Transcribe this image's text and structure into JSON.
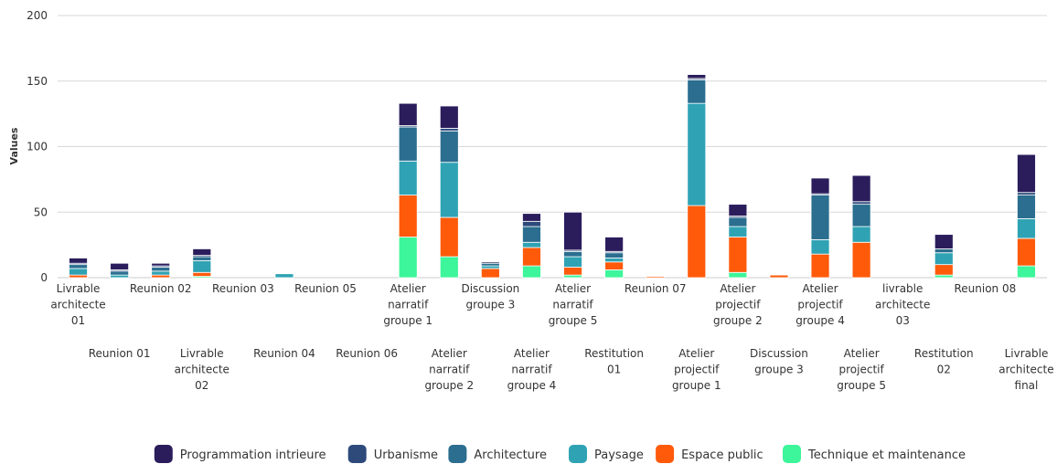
{
  "chart_data": {
    "type": "bar",
    "stacked": true,
    "ylabel": "Values",
    "ylim": [
      0,
      200
    ],
    "yticks": [
      0,
      50,
      100,
      150,
      200
    ],
    "legend_position": "bottom-center",
    "grid": true,
    "categories": [
      "Livrable architecte 01",
      "Reunion 01",
      "Reunion 02",
      "Livrable architecte 02",
      "Reunion 03",
      "Reunion 04",
      "Reunion 05",
      "Reunion 06",
      "Atelier narratif groupe 1",
      "Atelier narratif groupe 2",
      "Discussion groupe 3",
      "Atelier narratif groupe 4",
      "Atelier narratif groupe 5",
      "Restitution 01",
      "Reunion 07",
      "Atelier projectif groupe 1",
      "Atelier projectif groupe 2",
      "Discussion groupe 3",
      "Atelier projectif groupe 4",
      "Atelier projectif groupe 5",
      "livrable architecte 03",
      "Restitution 02",
      "Reunion 08",
      "Livrable architecte final"
    ],
    "series": [
      {
        "name": "Technique et maintenance",
        "color": "#3df59a",
        "values": [
          0,
          0,
          0,
          1,
          0,
          0,
          0,
          0,
          31,
          16,
          0,
          9,
          2,
          6,
          0,
          0,
          4,
          0,
          0,
          0,
          0,
          2,
          0,
          9
        ]
      },
      {
        "name": "Espace public",
        "color": "#ff5a0a",
        "values": [
          2,
          0,
          2,
          3,
          0,
          0,
          0,
          0,
          32,
          30,
          7,
          14,
          6,
          6,
          1,
          55,
          27,
          2,
          18,
          27,
          0,
          8,
          0,
          21
        ]
      },
      {
        "name": "Paysage",
        "color": "#2fa3b4",
        "values": [
          5,
          2,
          3,
          9,
          0,
          3,
          0,
          0,
          26,
          42,
          2,
          4,
          8,
          3,
          0,
          78,
          8,
          0,
          11,
          12,
          0,
          9,
          0,
          15
        ]
      },
      {
        "name": "Architecture",
        "color": "#2b6e8f",
        "values": [
          3,
          3,
          3,
          3,
          0,
          0,
          0,
          0,
          26,
          24,
          2,
          12,
          4,
          4,
          0,
          18,
          7,
          0,
          34,
          17,
          0,
          3,
          0,
          18
        ]
      },
      {
        "name": "Urbanisme",
        "color": "#2d4a7b",
        "values": [
          1,
          1,
          1,
          1,
          0,
          0,
          0,
          0,
          1,
          2,
          0,
          4,
          1,
          1,
          0,
          1,
          1,
          0,
          1,
          2,
          0,
          0,
          0,
          2
        ]
      },
      {
        "name": "Programmation intrieure",
        "color": "#2b1d5c",
        "values": [
          4,
          5,
          2,
          5,
          0,
          0,
          0,
          0,
          17,
          17,
          1,
          6,
          29,
          11,
          0,
          3,
          9,
          0,
          12,
          20,
          0,
          11,
          0,
          29
        ]
      }
    ],
    "legend_order": [
      "Programmation intrieure",
      "Urbanisme",
      "Architecture",
      "Paysage",
      "Espace public",
      "Technique et maintenance"
    ]
  }
}
